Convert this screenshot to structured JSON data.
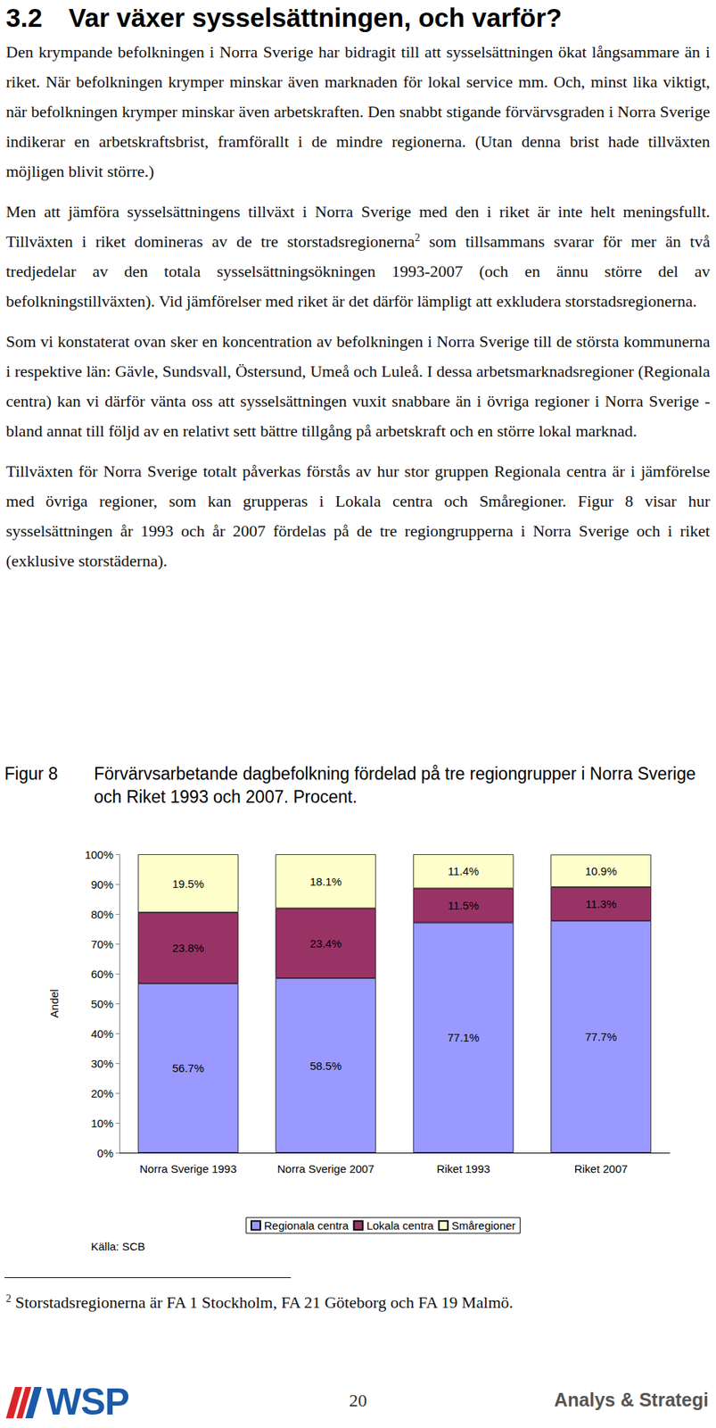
{
  "heading": {
    "number": "3.2",
    "title": "Var växer sysselsättningen, och varför?"
  },
  "paragraphs": [
    [
      {
        "text": "Den krympande befolkningen i Norra Sverige har bidragit till att sysselsättningen ökat långsammare än i riket. När befolkningen krymper minskar även marknaden för lokal service mm. Och, minst lika viktigt, när befolkningen krymper minskar även arbetskraften. Den snabbt stigande förvärvsgraden i Norra Sverige indikerar en arbetskraftsbrist, framförallt i de mindre regionerna. (Utan denna brist hade tillväxten möjligen blivit större.)"
      }
    ],
    [
      {
        "text": "Men att jämföra sysselsättningens tillväxt i Norra Sverige med den i riket är inte helt meningsfullt. Tillväxten i riket domineras av de tre storstadsregionerna"
      },
      {
        "sup": "2"
      },
      {
        "text": " som tillsammans svarar för mer än två tredjedelar av den totala sysselsättningsökningen 1993-2007 (och en ännu större del av befolkningstillväxten). Vid jämförelser med riket är det därför lämpligt att exkludera storstadsregionerna."
      }
    ],
    [
      {
        "text": "Som vi konstaterat ovan sker en koncentration av befolkningen i Norra Sverige till de största kommunerna i respektive län: Gävle, Sundsvall, Östersund, Umeå och Luleå. I dessa arbetsmarknadsregioner (Regionala centra) kan vi därför vänta oss att sysselsättningen vuxit snabbare än i övriga regioner i Norra Sverige - bland annat till följd av en relativt sett bättre tillgång på arbetskraft och en större lokal marknad."
      }
    ],
    [
      {
        "text": "Tillväxten för Norra Sverige totalt påverkas förstås av hur stor gruppen Regionala centra är i jämförelse med övriga regioner, som kan grupperas i Lokala centra och Småregioner. Figur 8 visar hur sysselsättningen år 1993 och år 2007 fördelas på de tre regiongrupperna i Norra Sverige och i riket (exklusive storstäderna)."
      }
    ]
  ],
  "figure": {
    "label": "Figur 8",
    "caption": "Förvärvsarbetande dagbefolkning fördelad på tre regiongrupper i Norra Sverige och Riket 1993 och 2007. Procent.",
    "source": "Källa: SCB"
  },
  "chart_data": {
    "type": "bar",
    "stacked": true,
    "data_labels": true,
    "y_label": "Andel",
    "categories": [
      "Norra Sverige 1993",
      "Norra Sverige 2007",
      "Riket 1993",
      "Riket 2007"
    ],
    "series": [
      {
        "name": "Regionala centra",
        "color": "#9999ff",
        "values": [
          56.7,
          58.5,
          77.1,
          77.7
        ],
        "value_labels": [
          "56.7%",
          "58.5%",
          "77.1%",
          "77.7%"
        ]
      },
      {
        "name": "Lokala centra",
        "color": "#993366",
        "values": [
          23.8,
          23.4,
          11.5,
          11.3
        ],
        "value_labels": [
          "23.8%",
          "23.4%",
          "11.5%",
          "11.3%"
        ]
      },
      {
        "name": "Småregioner",
        "color": "#ffffcc",
        "values": [
          19.5,
          18.1,
          11.4,
          10.9
        ],
        "value_labels": [
          "19.5%",
          "18.1%",
          "11.4%",
          "10.9%"
        ]
      }
    ],
    "ylim": [
      0,
      100
    ],
    "yticks": [
      {
        "value": 0,
        "label": "0%"
      },
      {
        "value": 10,
        "label": "10%"
      },
      {
        "value": 20,
        "label": "20%"
      },
      {
        "value": 30,
        "label": "30%"
      },
      {
        "value": 40,
        "label": "40%"
      },
      {
        "value": 50,
        "label": "50%"
      },
      {
        "value": 60,
        "label": "60%"
      },
      {
        "value": 70,
        "label": "70%"
      },
      {
        "value": 80,
        "label": "80%"
      },
      {
        "value": 90,
        "label": "90%"
      },
      {
        "value": 100,
        "label": "100%"
      }
    ],
    "grid": false,
    "legend": "bottom"
  },
  "footnote": {
    "marker": "2",
    "text": "Storstadsregionerna är FA 1 Stockholm, FA 21 Göteborg och FA 19 Malmö."
  },
  "footer": {
    "logo": "WSP",
    "page": 20,
    "right": "Analys & Strategi"
  }
}
